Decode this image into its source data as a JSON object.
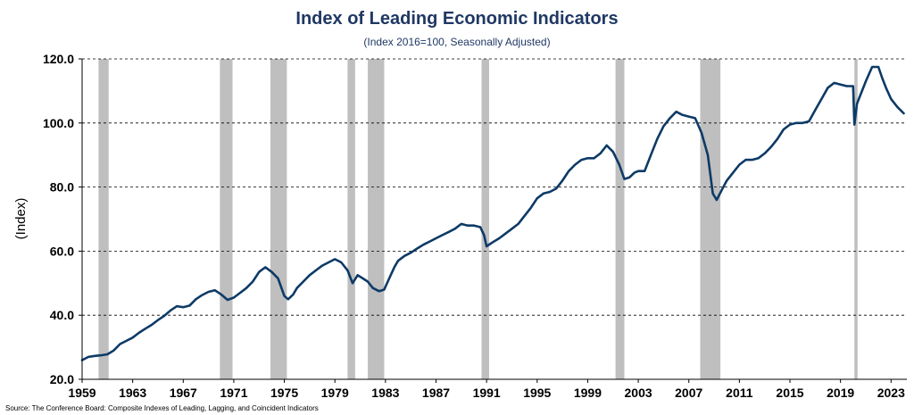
{
  "colors": {
    "title": "#1f3864",
    "series": "#0d3a66",
    "recession": "#bfbfbf",
    "grid": "#000000"
  },
  "chart_data": {
    "type": "line",
    "title": "Index of Leading Economic Indicators",
    "subtitle": "(Index 2016=100, Seasonally Adjusted)",
    "ylabel": "(Index)",
    "xlabel": "",
    "xlim": [
      1959,
      2024.25
    ],
    "ylim": [
      20,
      120
    ],
    "yticks": [
      20,
      40,
      60,
      80,
      100,
      120
    ],
    "ytick_labels": [
      "20.0",
      "40.0",
      "60.0",
      "80.0",
      "100.0",
      "120.0"
    ],
    "xticks": [
      1959,
      1963,
      1967,
      1971,
      1975,
      1979,
      1983,
      1987,
      1991,
      1995,
      1999,
      2003,
      2007,
      2011,
      2015,
      2019,
      2023
    ],
    "xtick_labels": [
      "1959",
      "1963",
      "1967",
      "1971",
      "1975",
      "1979",
      "1983",
      "1987",
      "1991",
      "1995",
      "1999",
      "2003",
      "2007",
      "2011",
      "2015",
      "2019",
      "2023"
    ],
    "grid": "horizontal dashed",
    "source": "Source: The Conference Board: Composite Indexes of Leading, Lagging, and Coincident Indicators",
    "recessions": [
      [
        1960.3,
        1961.1
      ],
      [
        1969.9,
        1970.9
      ],
      [
        1973.9,
        1975.2
      ],
      [
        1980.0,
        1980.6
      ],
      [
        1981.6,
        1982.9
      ],
      [
        1990.6,
        1991.2
      ],
      [
        2001.2,
        2001.9
      ],
      [
        2007.9,
        2009.5
      ],
      [
        2020.1,
        2020.35
      ]
    ],
    "series": [
      {
        "x": [
          1959.0,
          1959.5,
          1960.0,
          1960.5,
          1961.0,
          1961.5,
          1962.0,
          1962.5,
          1963.0,
          1963.5,
          1964.0,
          1964.5,
          1965.0,
          1965.5,
          1966.0,
          1966.5,
          1967.0,
          1967.5,
          1968.0,
          1968.5,
          1969.0,
          1969.5,
          1970.0,
          1970.5,
          1971.0,
          1971.5,
          1972.0,
          1972.5,
          1973.0,
          1973.5,
          1974.0,
          1974.5,
          1975.0,
          1975.3,
          1975.7,
          1976.0,
          1976.5,
          1977.0,
          1977.5,
          1978.0,
          1978.5,
          1979.0,
          1979.5,
          1980.0,
          1980.4,
          1980.8,
          1981.2,
          1981.6,
          1982.0,
          1982.5,
          1982.9,
          1983.3,
          1983.7,
          1984.0,
          1984.5,
          1985.0,
          1985.5,
          1986.0,
          1986.5,
          1987.0,
          1987.5,
          1988.0,
          1988.5,
          1989.0,
          1989.5,
          1990.0,
          1990.5,
          1990.8,
          1991.0,
          1991.5,
          1992.0,
          1992.5,
          1993.0,
          1993.5,
          1994.0,
          1994.5,
          1995.0,
          1995.5,
          1996.0,
          1996.5,
          1997.0,
          1997.5,
          1998.0,
          1998.5,
          1999.0,
          1999.5,
          2000.0,
          2000.5,
          2001.0,
          2001.5,
          2001.9,
          2002.3,
          2002.7,
          2003.0,
          2003.5,
          2004.0,
          2004.5,
          2005.0,
          2005.5,
          2006.0,
          2006.5,
          2007.0,
          2007.5,
          2008.0,
          2008.5,
          2008.9,
          2009.2,
          2009.6,
          2010.0,
          2010.5,
          2011.0,
          2011.5,
          2012.0,
          2012.5,
          2013.0,
          2013.5,
          2014.0,
          2014.5,
          2015.0,
          2015.5,
          2016.0,
          2016.5,
          2017.0,
          2017.5,
          2018.0,
          2018.5,
          2019.0,
          2019.5,
          2020.0,
          2020.1,
          2020.3,
          2020.5,
          2021.0,
          2021.5,
          2022.0,
          2022.3,
          2022.6,
          2023.0,
          2023.5,
          2024.0
        ],
        "values": [
          26.0,
          27.0,
          27.3,
          27.5,
          27.8,
          29.0,
          31.0,
          32.0,
          33.0,
          34.5,
          35.8,
          37.0,
          38.5,
          39.8,
          41.5,
          42.8,
          42.5,
          43.0,
          45.0,
          46.3,
          47.3,
          47.8,
          46.5,
          44.8,
          45.5,
          47.0,
          48.5,
          50.5,
          53.5,
          55.0,
          53.5,
          51.5,
          46.0,
          45.0,
          46.5,
          48.5,
          50.5,
          52.5,
          54.0,
          55.5,
          56.5,
          57.5,
          56.5,
          54.0,
          50.0,
          52.5,
          51.5,
          50.5,
          48.5,
          47.5,
          48.0,
          51.5,
          55.0,
          57.0,
          58.5,
          59.5,
          60.8,
          62.0,
          63.0,
          64.0,
          65.0,
          66.0,
          67.0,
          68.5,
          68.0,
          68.0,
          67.5,
          65.0,
          61.5,
          62.8,
          64.0,
          65.5,
          67.0,
          68.5,
          71.0,
          73.5,
          76.5,
          78.0,
          78.5,
          79.5,
          82.0,
          85.0,
          87.0,
          88.5,
          89.0,
          89.0,
          90.5,
          93.0,
          91.0,
          87.0,
          82.5,
          83.0,
          84.5,
          85.0,
          85.0,
          90.0,
          95.0,
          99.0,
          101.5,
          103.5,
          102.5,
          102.0,
          101.5,
          97.0,
          90.0,
          78.0,
          76.0,
          79.0,
          82.0,
          84.5,
          87.0,
          88.5,
          88.5,
          89.0,
          90.5,
          92.5,
          95.0,
          98.0,
          99.5,
          100.0,
          100.0,
          100.5,
          104.0,
          107.5,
          111.0,
          112.5,
          112.0,
          111.5,
          111.5,
          99.5,
          106.0,
          108.0,
          113.0,
          117.5,
          117.5,
          114.0,
          111.0,
          107.5,
          105.0,
          103.0
        ]
      }
    ]
  }
}
